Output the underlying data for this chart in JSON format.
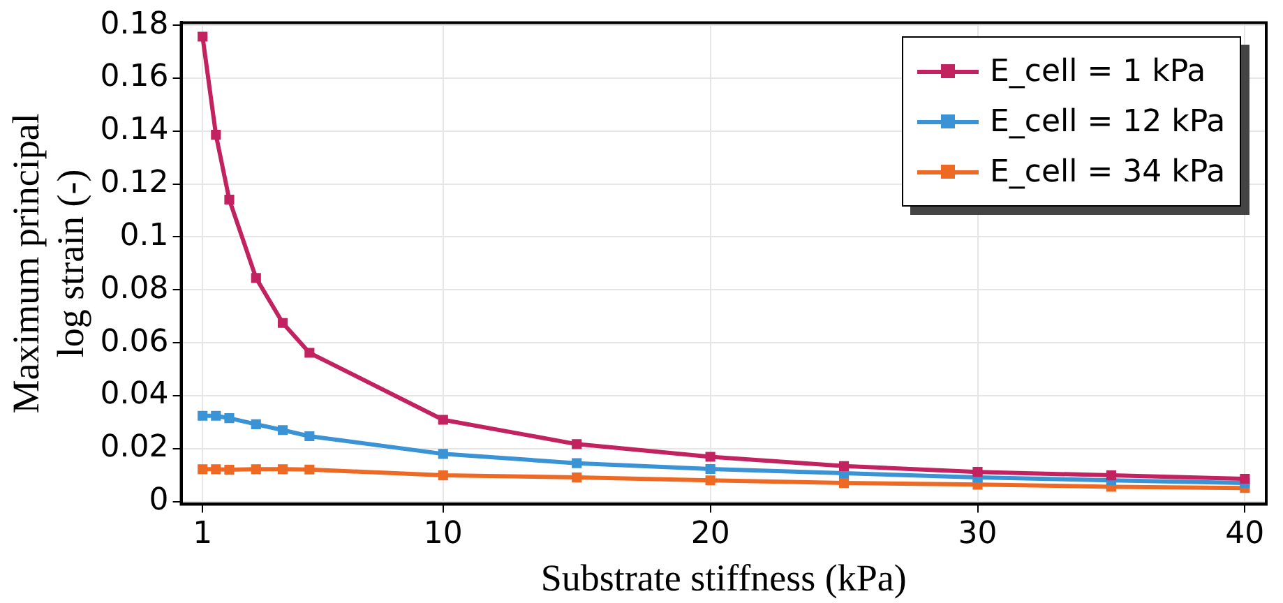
{
  "chart_data": {
    "type": "line",
    "xlabel": "Substrate stiffness (kPa)",
    "ylabel": "Maximum principal\nlog strain (-)",
    "x": [
      1,
      1.5,
      2,
      3,
      4,
      5,
      10,
      15,
      20,
      25,
      30,
      35,
      40
    ],
    "series": [
      {
        "name": "E_cell = 1 kPa",
        "color": "#c2225f",
        "values": [
          0.1757,
          0.1386,
          0.1141,
          0.0845,
          0.0675,
          0.0562,
          0.0309,
          0.0217,
          0.0169,
          0.0134,
          0.0112,
          0.0099,
          0.0086
        ]
      },
      {
        "name": "E_cell = 12 kPa",
        "color": "#3a93d4",
        "values": [
          0.0324,
          0.0324,
          0.0315,
          0.0292,
          0.027,
          0.0247,
          0.018,
          0.0145,
          0.0123,
          0.0107,
          0.0091,
          0.008,
          0.007
        ]
      },
      {
        "name": "E_cell = 34 kPa",
        "color": "#ee6a24",
        "values": [
          0.0122,
          0.0122,
          0.012,
          0.0122,
          0.0122,
          0.0121,
          0.0099,
          0.0091,
          0.008,
          0.007,
          0.0064,
          0.0056,
          0.0051
        ]
      }
    ],
    "xlim": [
      0.2,
      40.8
    ],
    "xticks": [
      1,
      10,
      20,
      30,
      40
    ],
    "ylim": [
      -0.001,
      0.181
    ],
    "yticks": [
      0,
      0.02,
      0.04,
      0.06,
      0.08,
      0.1,
      0.12,
      0.14,
      0.16,
      0.18
    ],
    "grid": true,
    "legend": "top right",
    "marker": "square",
    "line_style": "solid"
  }
}
